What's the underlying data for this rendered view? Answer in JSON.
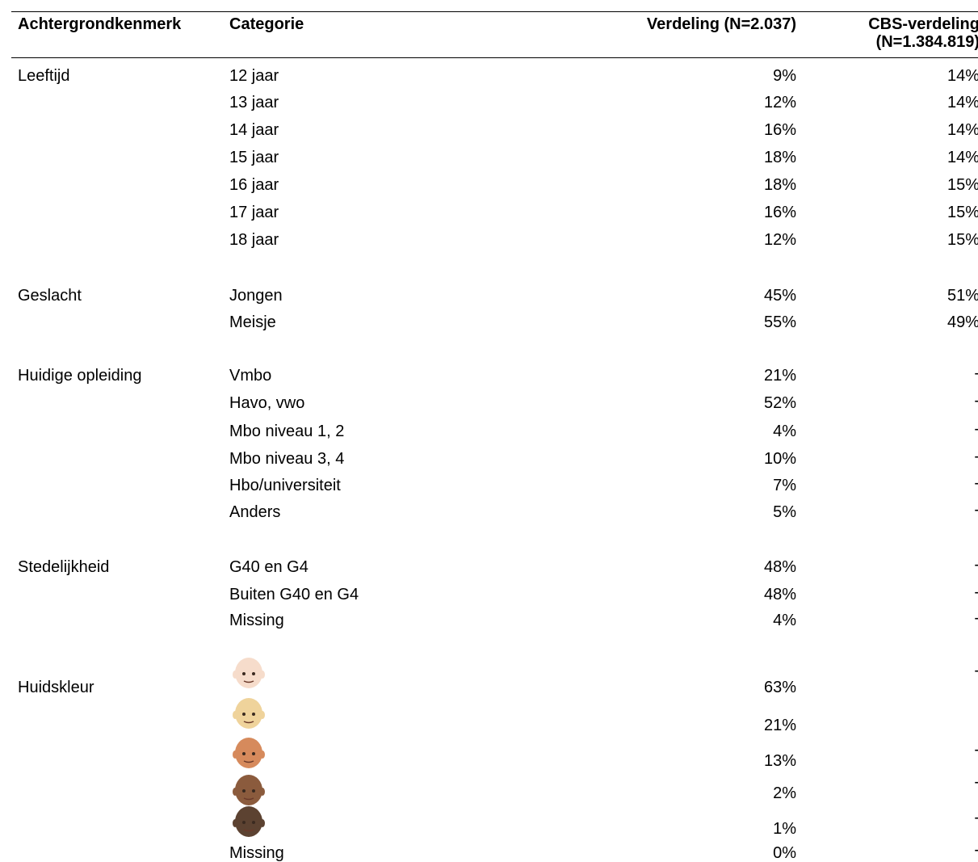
{
  "table": {
    "header": [
      "Achtergrondkenmerk",
      "Categorie",
      "Verdeling (N=2.037)",
      [
        "CBS-verdeling",
        "(N=1.384.819)"
      ]
    ],
    "sections": [
      {
        "label": "Leeftijd",
        "rows": [
          {
            "category": "12 jaar",
            "verdeling": "9%",
            "cbs": "14%"
          },
          {
            "category": "13 jaar",
            "verdeling": "12%",
            "cbs": "14%"
          },
          {
            "category": "14 jaar",
            "verdeling": "16%",
            "cbs": "14%"
          },
          {
            "category": "15 jaar",
            "verdeling": "18%",
            "cbs": "14%"
          },
          {
            "category": "16 jaar",
            "verdeling": "18%",
            "cbs": "15%"
          },
          {
            "category": "17 jaar",
            "verdeling": "16%",
            "cbs": "15%"
          },
          {
            "category": "18 jaar",
            "verdeling": "12%",
            "cbs": "15%"
          }
        ]
      },
      {
        "label": "Geslacht",
        "rows": [
          {
            "category": "Jongen",
            "verdeling": "45%",
            "cbs": "51%"
          },
          {
            "category": "Meisje",
            "verdeling": "55%",
            "cbs": "49%"
          }
        ]
      },
      {
        "label": "Huidige opleiding",
        "rows": [
          {
            "category": "Vmbo",
            "verdeling": "21%",
            "cbs": "-"
          },
          {
            "category": "Havo, vwo",
            "verdeling": "52%",
            "cbs": "-"
          },
          {
            "category": "Mbo niveau 1, 2",
            "verdeling": "4%",
            "cbs": "-"
          },
          {
            "category": "Mbo niveau 3, 4",
            "verdeling": "10%",
            "cbs": "-"
          },
          {
            "category": "Hbo/universiteit",
            "verdeling": "7%",
            "cbs": "-"
          },
          {
            "category": "Anders",
            "verdeling": "5%",
            "cbs": "-"
          }
        ]
      },
      {
        "label": "Stedelijkheid",
        "rows": [
          {
            "category": "G40 en G4",
            "verdeling": "48%",
            "cbs": "-"
          },
          {
            "category": "Buiten G40 en G4",
            "verdeling": "48%",
            "cbs": "-"
          },
          {
            "category": "Missing",
            "verdeling": "4%",
            "cbs": "-"
          }
        ]
      },
      {
        "label": "Huidskleur",
        "rows": [
          {
            "verdeling": "63%",
            "cbs": "-"
          },
          {
            "verdeling": "21%"
          },
          {
            "verdeling": "13%",
            "cbs": "-"
          },
          {
            "verdeling": "2%",
            "cbs": "-"
          },
          {
            "verdeling": "1%",
            "cbs": "-"
          },
          {
            "category": "Missing",
            "verdeling": "0%",
            "cbs": "-"
          }
        ]
      }
    ]
  }
}
